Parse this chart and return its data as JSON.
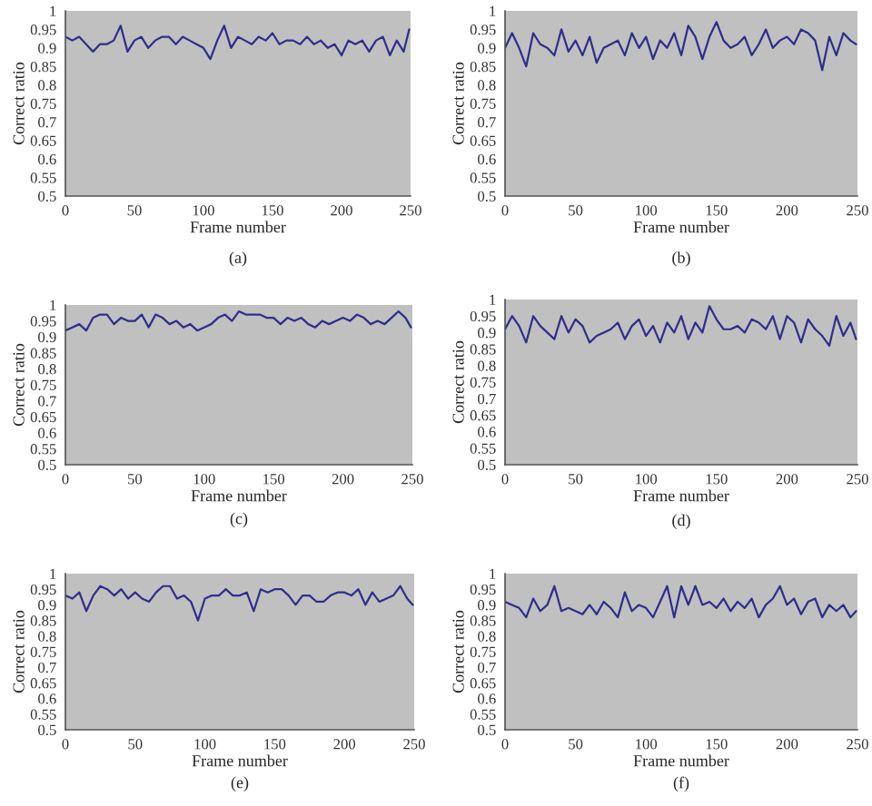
{
  "chart_data": [
    {
      "type": "line",
      "xlabel": "Frame number",
      "ylabel": "Correct ratio",
      "xlim": [
        0,
        250
      ],
      "xticks": [
        0,
        50,
        100,
        150,
        200,
        250
      ],
      "ylim": [
        0.5,
        1
      ],
      "yticks": [
        0.5,
        0.55,
        0.6,
        0.65,
        0.7,
        0.75,
        0.8,
        0.85,
        0.9,
        0.95,
        1
      ],
      "annotations": [
        "(a)"
      ],
      "x": [
        0,
        5,
        10,
        15,
        20,
        25,
        30,
        35,
        40,
        45,
        50,
        55,
        60,
        65,
        70,
        75,
        80,
        85,
        90,
        95,
        100,
        105,
        110,
        115,
        120,
        125,
        130,
        135,
        140,
        145,
        150,
        155,
        160,
        165,
        170,
        175,
        180,
        185,
        190,
        195,
        200,
        205,
        210,
        215,
        220,
        225,
        230,
        235,
        240,
        245,
        249
      ],
      "series": [
        {
          "color": "#2e2e8c",
          "values": [
            0.93,
            0.92,
            0.93,
            0.91,
            0.89,
            0.91,
            0.91,
            0.92,
            0.96,
            0.89,
            0.92,
            0.93,
            0.9,
            0.92,
            0.93,
            0.93,
            0.91,
            0.93,
            0.92,
            0.91,
            0.9,
            0.87,
            0.92,
            0.96,
            0.9,
            0.93,
            0.92,
            0.91,
            0.93,
            0.92,
            0.94,
            0.91,
            0.92,
            0.92,
            0.91,
            0.93,
            0.91,
            0.92,
            0.9,
            0.91,
            0.88,
            0.92,
            0.91,
            0.92,
            0.89,
            0.92,
            0.93,
            0.88,
            0.92,
            0.89,
            0.95
          ]
        }
      ]
    },
    {
      "type": "line",
      "xlabel": "Frame number",
      "ylabel": "Correct ratio",
      "xlim": [
        0,
        250
      ],
      "xticks": [
        0,
        50,
        100,
        150,
        200,
        250
      ],
      "ylim": [
        0.5,
        1
      ],
      "yticks": [
        0.5,
        0.55,
        0.6,
        0.65,
        0.7,
        0.75,
        0.8,
        0.85,
        0.9,
        0.95,
        1
      ],
      "annotations": [
        "(b)"
      ],
      "x": [
        0,
        5,
        10,
        15,
        20,
        25,
        30,
        35,
        40,
        45,
        50,
        55,
        60,
        65,
        70,
        75,
        80,
        85,
        90,
        95,
        100,
        105,
        110,
        115,
        120,
        125,
        130,
        135,
        140,
        145,
        150,
        155,
        160,
        165,
        170,
        175,
        180,
        185,
        190,
        195,
        200,
        205,
        210,
        215,
        220,
        225,
        230,
        235,
        240,
        245,
        249
      ],
      "series": [
        {
          "color": "#2e2e8c",
          "values": [
            0.9,
            0.94,
            0.9,
            0.85,
            0.94,
            0.91,
            0.9,
            0.88,
            0.95,
            0.89,
            0.92,
            0.88,
            0.93,
            0.86,
            0.9,
            0.91,
            0.92,
            0.88,
            0.94,
            0.9,
            0.93,
            0.87,
            0.92,
            0.9,
            0.94,
            0.88,
            0.96,
            0.93,
            0.87,
            0.93,
            0.97,
            0.92,
            0.9,
            0.91,
            0.93,
            0.88,
            0.91,
            0.95,
            0.9,
            0.92,
            0.93,
            0.91,
            0.95,
            0.94,
            0.92,
            0.84,
            0.93,
            0.88,
            0.94,
            0.92,
            0.91
          ]
        }
      ]
    },
    {
      "type": "line",
      "xlabel": "Frame number",
      "ylabel": "Correct ratio",
      "xlim": [
        0,
        250
      ],
      "xticks": [
        0,
        50,
        100,
        150,
        200,
        250
      ],
      "ylim": [
        0.5,
        1
      ],
      "yticks": [
        0.5,
        0.55,
        0.6,
        0.65,
        0.7,
        0.75,
        0.8,
        0.85,
        0.9,
        0.95,
        1
      ],
      "annotations": [
        "(c)"
      ],
      "x": [
        0,
        5,
        10,
        15,
        20,
        25,
        30,
        35,
        40,
        45,
        50,
        55,
        60,
        65,
        70,
        75,
        80,
        85,
        90,
        95,
        100,
        105,
        110,
        115,
        120,
        125,
        130,
        135,
        140,
        145,
        150,
        155,
        160,
        165,
        170,
        175,
        180,
        185,
        190,
        195,
        200,
        205,
        210,
        215,
        220,
        225,
        230,
        235,
        240,
        245,
        249
      ],
      "series": [
        {
          "color": "#2e2e8c",
          "values": [
            0.92,
            0.93,
            0.94,
            0.92,
            0.96,
            0.97,
            0.97,
            0.94,
            0.96,
            0.95,
            0.95,
            0.97,
            0.93,
            0.97,
            0.96,
            0.94,
            0.95,
            0.93,
            0.94,
            0.92,
            0.93,
            0.94,
            0.96,
            0.97,
            0.95,
            0.98,
            0.97,
            0.97,
            0.97,
            0.96,
            0.96,
            0.94,
            0.96,
            0.95,
            0.96,
            0.94,
            0.93,
            0.95,
            0.94,
            0.95,
            0.96,
            0.95,
            0.97,
            0.96,
            0.94,
            0.95,
            0.94,
            0.96,
            0.98,
            0.96,
            0.93
          ]
        }
      ]
    },
    {
      "type": "line",
      "xlabel": "Frame number",
      "ylabel": "Correct ratio",
      "xlim": [
        0,
        250
      ],
      "xticks": [
        0,
        50,
        100,
        150,
        200,
        250
      ],
      "ylim": [
        0.5,
        1
      ],
      "yticks": [
        0.5,
        0.55,
        0.6,
        0.65,
        0.7,
        0.75,
        0.8,
        0.85,
        0.9,
        0.95,
        1
      ],
      "annotations": [
        "(d)"
      ],
      "x": [
        0,
        5,
        10,
        15,
        20,
        25,
        30,
        35,
        40,
        45,
        50,
        55,
        60,
        65,
        70,
        75,
        80,
        85,
        90,
        95,
        100,
        105,
        110,
        115,
        120,
        125,
        130,
        135,
        140,
        145,
        150,
        155,
        160,
        165,
        170,
        175,
        180,
        185,
        190,
        195,
        200,
        205,
        210,
        215,
        220,
        225,
        230,
        235,
        240,
        245,
        249
      ],
      "series": [
        {
          "color": "#2e2e8c",
          "values": [
            0.91,
            0.95,
            0.92,
            0.87,
            0.95,
            0.92,
            0.9,
            0.88,
            0.95,
            0.9,
            0.94,
            0.92,
            0.87,
            0.89,
            0.9,
            0.91,
            0.93,
            0.88,
            0.92,
            0.94,
            0.89,
            0.92,
            0.87,
            0.93,
            0.9,
            0.95,
            0.88,
            0.93,
            0.9,
            0.98,
            0.94,
            0.91,
            0.91,
            0.92,
            0.9,
            0.94,
            0.93,
            0.91,
            0.95,
            0.88,
            0.95,
            0.93,
            0.87,
            0.94,
            0.91,
            0.89,
            0.86,
            0.95,
            0.89,
            0.93,
            0.88
          ]
        }
      ]
    },
    {
      "type": "line",
      "xlabel": "Frame number",
      "ylabel": "Correct ratio",
      "xlim": [
        0,
        250
      ],
      "xticks": [
        0,
        50,
        100,
        150,
        200,
        250
      ],
      "ylim": [
        0.5,
        1
      ],
      "yticks": [
        0.5,
        0.55,
        0.6,
        0.65,
        0.7,
        0.75,
        0.8,
        0.85,
        0.9,
        0.95,
        1
      ],
      "annotations": [
        "(e)"
      ],
      "x": [
        0,
        5,
        10,
        15,
        20,
        25,
        30,
        35,
        40,
        45,
        50,
        55,
        60,
        65,
        70,
        75,
        80,
        85,
        90,
        95,
        100,
        105,
        110,
        115,
        120,
        125,
        130,
        135,
        140,
        145,
        150,
        155,
        160,
        165,
        170,
        175,
        180,
        185,
        190,
        195,
        200,
        205,
        210,
        215,
        220,
        225,
        230,
        235,
        240,
        245,
        249
      ],
      "series": [
        {
          "color": "#2e2e8c",
          "values": [
            0.93,
            0.92,
            0.94,
            0.88,
            0.93,
            0.96,
            0.95,
            0.93,
            0.95,
            0.92,
            0.94,
            0.92,
            0.91,
            0.94,
            0.96,
            0.96,
            0.92,
            0.93,
            0.91,
            0.85,
            0.92,
            0.93,
            0.93,
            0.95,
            0.93,
            0.93,
            0.94,
            0.88,
            0.95,
            0.94,
            0.95,
            0.95,
            0.93,
            0.9,
            0.93,
            0.93,
            0.91,
            0.91,
            0.93,
            0.94,
            0.94,
            0.93,
            0.95,
            0.9,
            0.94,
            0.91,
            0.92,
            0.93,
            0.96,
            0.92,
            0.9
          ]
        }
      ]
    },
    {
      "type": "line",
      "xlabel": "Frame number",
      "ylabel": "Correct ratio",
      "xlim": [
        0,
        250
      ],
      "xticks": [
        0,
        50,
        100,
        150,
        200,
        250
      ],
      "ylim": [
        0.5,
        1
      ],
      "yticks": [
        0.5,
        0.55,
        0.6,
        0.65,
        0.7,
        0.75,
        0.8,
        0.85,
        0.9,
        0.95,
        1
      ],
      "annotations": [
        "(f)"
      ],
      "x": [
        0,
        5,
        10,
        15,
        20,
        25,
        30,
        35,
        40,
        45,
        50,
        55,
        60,
        65,
        70,
        75,
        80,
        85,
        90,
        95,
        100,
        105,
        110,
        115,
        120,
        125,
        130,
        135,
        140,
        145,
        150,
        155,
        160,
        165,
        170,
        175,
        180,
        185,
        190,
        195,
        200,
        205,
        210,
        215,
        220,
        225,
        230,
        235,
        240,
        245,
        249
      ],
      "series": [
        {
          "color": "#2e2e8c",
          "values": [
            0.91,
            0.9,
            0.89,
            0.86,
            0.92,
            0.88,
            0.9,
            0.96,
            0.88,
            0.89,
            0.88,
            0.87,
            0.9,
            0.87,
            0.91,
            0.89,
            0.86,
            0.94,
            0.88,
            0.9,
            0.89,
            0.86,
            0.91,
            0.96,
            0.86,
            0.96,
            0.9,
            0.96,
            0.9,
            0.91,
            0.89,
            0.92,
            0.88,
            0.91,
            0.89,
            0.92,
            0.86,
            0.9,
            0.92,
            0.96,
            0.9,
            0.92,
            0.87,
            0.91,
            0.92,
            0.86,
            0.9,
            0.88,
            0.9,
            0.86,
            0.88
          ]
        }
      ]
    }
  ]
}
